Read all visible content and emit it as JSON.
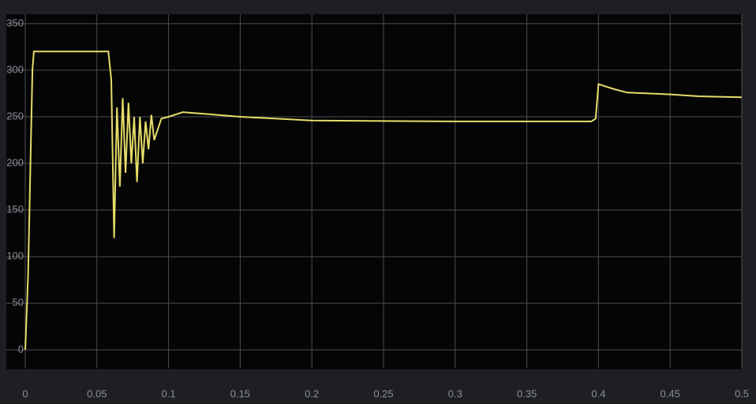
{
  "chart_data": {
    "type": "line",
    "x": [
      0,
      0.002,
      0.005,
      0.006,
      0.01,
      0.058,
      0.06,
      0.062,
      0.064,
      0.066,
      0.068,
      0.07,
      0.072,
      0.074,
      0.076,
      0.078,
      0.08,
      0.082,
      0.084,
      0.086,
      0.088,
      0.09,
      0.095,
      0.1,
      0.11,
      0.15,
      0.2,
      0.3,
      0.395,
      0.398,
      0.4,
      0.41,
      0.42,
      0.45,
      0.47,
      0.5
    ],
    "values": [
      0,
      80,
      300,
      320,
      320,
      320,
      290,
      120,
      260,
      175,
      270,
      190,
      265,
      200,
      250,
      180,
      250,
      200,
      245,
      215,
      252,
      225,
      248,
      250,
      255,
      250,
      246,
      245,
      245,
      248,
      285,
      280,
      276,
      274,
      272,
      271
    ],
    "color": "#e6dc6a",
    "xlim": [
      0,
      0.5
    ],
    "xticks": [
      0,
      0.05,
      0.1,
      0.15,
      0.2,
      0.25,
      0.3,
      0.35,
      0.4,
      0.45,
      0.5
    ],
    "ylim": [
      -20,
      360
    ],
    "yticks": [
      0,
      50,
      100,
      150,
      200,
      250,
      300,
      350
    ],
    "grid": true
  }
}
